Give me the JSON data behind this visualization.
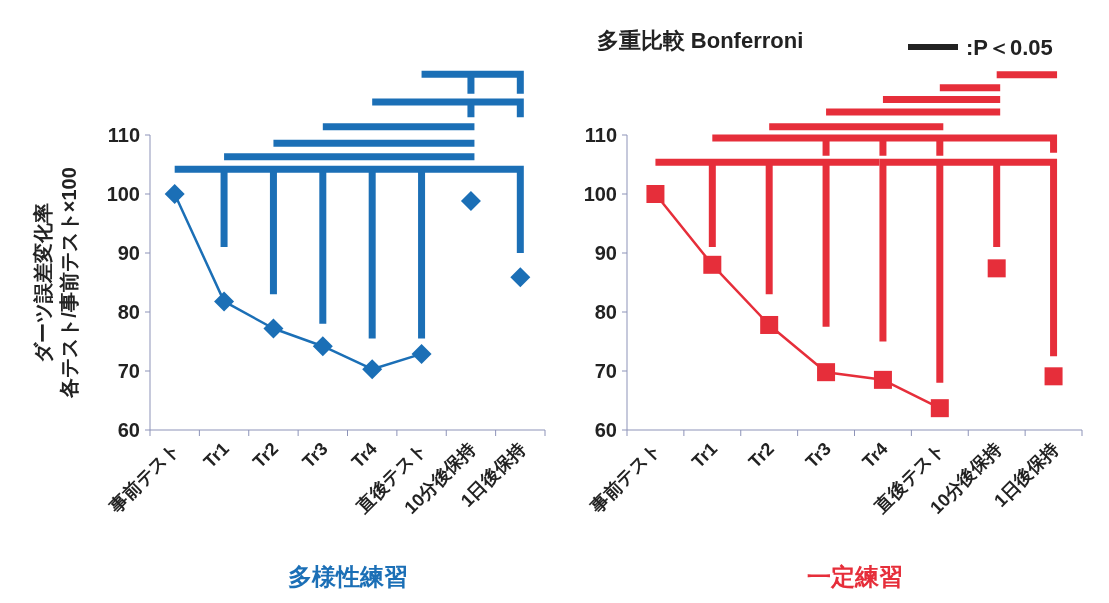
{
  "chart_data": [
    {
      "type": "line",
      "xlabel": "多様性練習",
      "ylabel": "ダーツ誤差変化率",
      "annotations": [
        "各テスト/事前テスト×100"
      ],
      "categories": [
        "事前テスト",
        "Tr1",
        "Tr2",
        "Tr3",
        "Tr4",
        "直後テスト",
        "10分後保持",
        "1日後保持"
      ],
      "ylim": [
        60,
        110
      ],
      "yticks": [
        60,
        70,
        80,
        90,
        100,
        110
      ],
      "marker": "diamond",
      "series": [
        {
          "type": "line",
          "color": "#1b6fb6",
          "values": [
            100,
            81.8,
            77.2,
            74.2,
            70.3,
            72.9,
            null,
            null
          ]
        },
        {
          "type": "scatter",
          "color": "#1b6fb6",
          "values": [
            null,
            null,
            null,
            null,
            null,
            null,
            98.8,
            85.9
          ]
        }
      ]
    },
    {
      "type": "line",
      "title": "多重比較  Bonferroni",
      "xlabel": "一定練習",
      "categories": [
        "事前テスト",
        "Tr1",
        "Tr2",
        "Tr3",
        "Tr4",
        "直後テスト",
        "10分後保持",
        "1日後保持"
      ],
      "ylim": [
        60,
        110
      ],
      "yticks": [
        60,
        70,
        80,
        90,
        100,
        110
      ],
      "marker": "square",
      "annotations": [
        ":P＜0.05"
      ],
      "series": [
        {
          "type": "line",
          "color": "#e62e3a",
          "values": [
            100,
            88,
            77.8,
            69.8,
            68.5,
            63.7,
            null,
            null
          ]
        },
        {
          "type": "scatter",
          "color": "#e62e3a",
          "values": [
            null,
            null,
            null,
            null,
            null,
            null,
            87.4,
            69.1
          ]
        }
      ]
    }
  ]
}
